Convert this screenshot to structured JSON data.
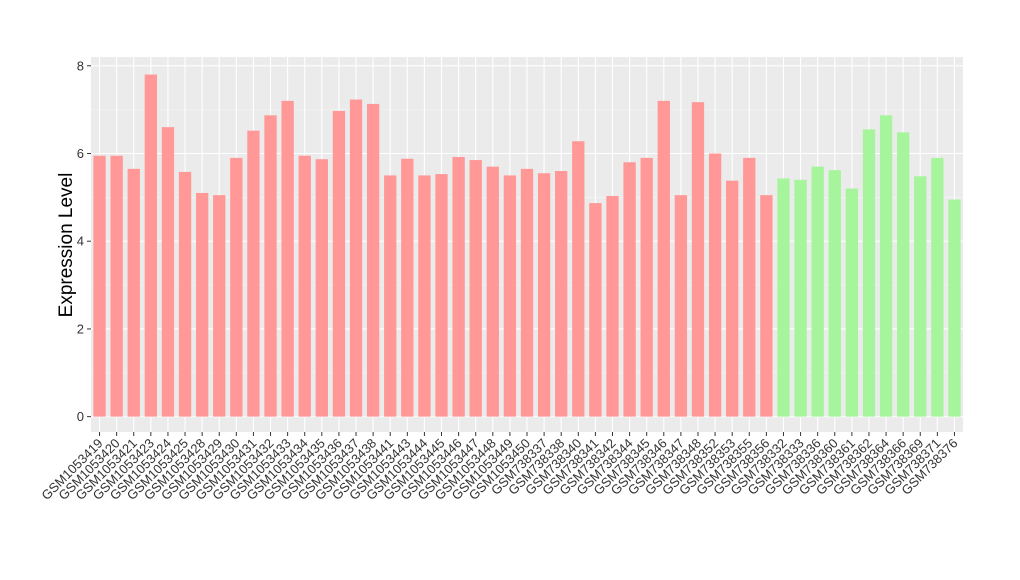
{
  "chart_data": {
    "type": "bar",
    "title": "",
    "xlabel": "",
    "ylabel": "Expression Level",
    "ylim": [
      -0.35,
      8.2
    ],
    "yticks": [
      0,
      2,
      4,
      6,
      8
    ],
    "grid": true,
    "legend": "none",
    "categories": [
      "GSM1053419",
      "GSM1053420",
      "GSM1053421",
      "GSM1053423",
      "GSM1053424",
      "GSM1053425",
      "GSM1053428",
      "GSM1053429",
      "GSM1053430",
      "GSM1053431",
      "GSM1053432",
      "GSM1053433",
      "GSM1053434",
      "GSM1053435",
      "GSM1053436",
      "GSM1053437",
      "GSM1053438",
      "GSM1053441",
      "GSM1053443",
      "GSM1053444",
      "GSM1053445",
      "GSM1053446",
      "GSM1053447",
      "GSM1053448",
      "GSM1053449",
      "GSM1053450",
      "GSM738337",
      "GSM738338",
      "GSM738340",
      "GSM738341",
      "GSM738342",
      "GSM738344",
      "GSM738345",
      "GSM738346",
      "GSM738347",
      "GSM738348",
      "GSM738352",
      "GSM738353",
      "GSM738355",
      "GSM738356",
      "GSM738332",
      "GSM738333",
      "GSM738336",
      "GSM738360",
      "GSM738361",
      "GSM738362",
      "GSM738364",
      "GSM738366",
      "GSM738369",
      "GSM738371",
      "GSM738376"
    ],
    "values": [
      5.95,
      5.95,
      5.65,
      7.8,
      6.6,
      5.58,
      5.1,
      5.05,
      5.9,
      6.52,
      6.87,
      7.2,
      5.95,
      5.87,
      6.97,
      7.23,
      7.13,
      5.5,
      5.88,
      5.5,
      5.53,
      5.92,
      5.85,
      5.7,
      5.5,
      5.65,
      5.55,
      5.6,
      6.28,
      4.87,
      5.03,
      5.8,
      5.9,
      7.2,
      5.05,
      7.17,
      6.0,
      5.38,
      5.9,
      5.05,
      5.43,
      5.4,
      5.7,
      5.62,
      5.2,
      6.55,
      6.87,
      6.48,
      5.48,
      5.9,
      4.95
    ],
    "groups": [
      "A",
      "A",
      "A",
      "A",
      "A",
      "A",
      "A",
      "A",
      "A",
      "A",
      "A",
      "A",
      "A",
      "A",
      "A",
      "A",
      "A",
      "A",
      "A",
      "A",
      "A",
      "A",
      "A",
      "A",
      "A",
      "A",
      "A",
      "A",
      "A",
      "A",
      "A",
      "A",
      "A",
      "A",
      "A",
      "A",
      "A",
      "A",
      "A",
      "A",
      "B",
      "B",
      "B",
      "B",
      "B",
      "B",
      "B",
      "B",
      "B",
      "B",
      "B"
    ],
    "group_colors": {
      "A": "#ff9896",
      "B": "#a6f59c"
    }
  },
  "style": {
    "panel_bg": "#ebebeb",
    "grid_major": "#ffffff",
    "grid_minor": "#f5f5f5",
    "tick_color": "#333333"
  }
}
